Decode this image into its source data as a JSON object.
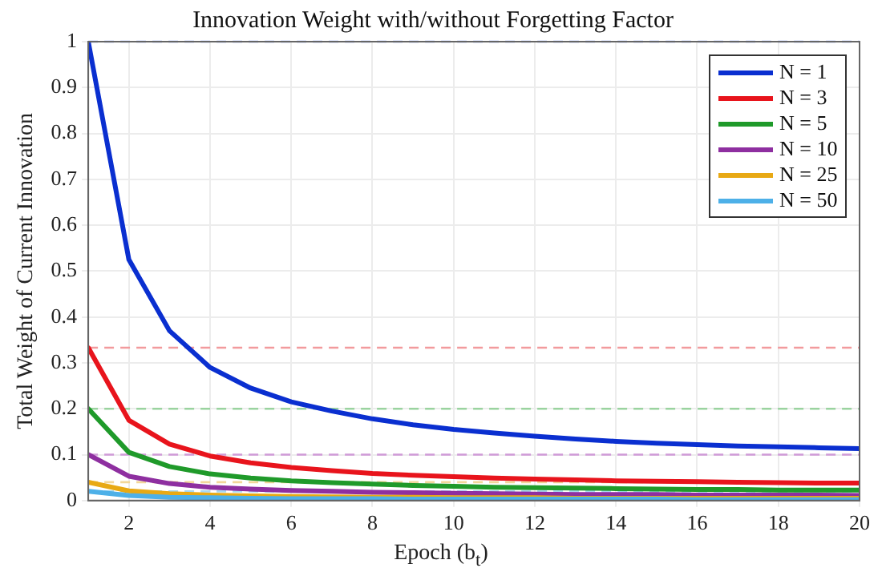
{
  "chart_data": {
    "type": "line",
    "title": "Innovation Weight with/without Forgetting Factor",
    "xlabel": "Epoch (b$_{t}$)",
    "ylabel": "Total Weight of Current Innovation",
    "x": [
      1,
      2,
      3,
      4,
      5,
      6,
      7,
      8,
      9,
      10,
      11,
      12,
      13,
      14,
      15,
      16,
      17,
      18,
      19,
      20
    ],
    "xlim": [
      1,
      20
    ],
    "xticks": [
      2,
      4,
      6,
      8,
      10,
      12,
      14,
      16,
      18,
      20
    ],
    "ylim": [
      0,
      1
    ],
    "yticks": [
      0,
      0.1,
      0.2,
      0.3,
      0.4,
      0.5,
      0.6,
      0.7,
      0.8,
      0.9,
      1
    ],
    "grid": true,
    "legend": "top right",
    "marker": "none",
    "line_style": "solid",
    "series": [
      {
        "name": "N = 1",
        "color": "#0a2fd0",
        "values": [
          1,
          0.525,
          0.37,
          0.29,
          0.245,
          0.215,
          0.195,
          0.178,
          0.165,
          0.155,
          0.147,
          0.14,
          0.134,
          0.129,
          0.125,
          0.122,
          0.119,
          0.117,
          0.115,
          0.113
        ]
      },
      {
        "name": "N = 3",
        "color": "#e8141c",
        "values": [
          0.333,
          0.175,
          0.123,
          0.097,
          0.082,
          0.072,
          0.065,
          0.059,
          0.055,
          0.052,
          0.049,
          0.047,
          0.045,
          0.043,
          0.042,
          0.041,
          0.04,
          0.039,
          0.038,
          0.038
        ]
      },
      {
        "name": "N = 5",
        "color": "#1f9a2a",
        "values": [
          0.2,
          0.105,
          0.074,
          0.058,
          0.049,
          0.043,
          0.039,
          0.036,
          0.033,
          0.031,
          0.029,
          0.028,
          0.027,
          0.026,
          0.025,
          0.024,
          0.024,
          0.023,
          0.023,
          0.023
        ]
      },
      {
        "name": "N = 10",
        "color": "#8e2fa0",
        "values": [
          0.1,
          0.053,
          0.037,
          0.029,
          0.025,
          0.022,
          0.02,
          0.018,
          0.017,
          0.016,
          0.015,
          0.014,
          0.013,
          0.013,
          0.013,
          0.012,
          0.012,
          0.012,
          0.012,
          0.011
        ]
      },
      {
        "name": "N = 25",
        "color": "#e8a914",
        "values": [
          0.04,
          0.021,
          0.015,
          0.012,
          0.01,
          0.009,
          0.008,
          0.007,
          0.007,
          0.006,
          0.006,
          0.006,
          0.005,
          0.005,
          0.005,
          0.005,
          0.005,
          0.005,
          0.005,
          0.005
        ]
      },
      {
        "name": "N = 50",
        "color": "#4db0e8",
        "values": [
          0.02,
          0.011,
          0.007,
          0.006,
          0.005,
          0.004,
          0.004,
          0.004,
          0.003,
          0.003,
          0.003,
          0.003,
          0.003,
          0.003,
          0.003,
          0.002,
          0.002,
          0.002,
          0.002,
          0.002
        ]
      }
    ],
    "ref_lines": [
      {
        "axis": "y",
        "value": 1,
        "color": "#8fa3ee",
        "line_style": "dashed"
      },
      {
        "axis": "y",
        "value": 0.333,
        "color": "#f29a9d",
        "line_style": "dashed"
      },
      {
        "axis": "y",
        "value": 0.2,
        "color": "#9ad39f",
        "line_style": "dashed"
      },
      {
        "axis": "y",
        "value": 0.1,
        "color": "#cf9ad8",
        "line_style": "dashed"
      },
      {
        "axis": "y",
        "value": 0.04,
        "color": "#f2d79a",
        "line_style": "dashed"
      },
      {
        "axis": "y",
        "value": 0.02,
        "color": "#a6d8f2",
        "line_style": "dashed"
      }
    ]
  }
}
